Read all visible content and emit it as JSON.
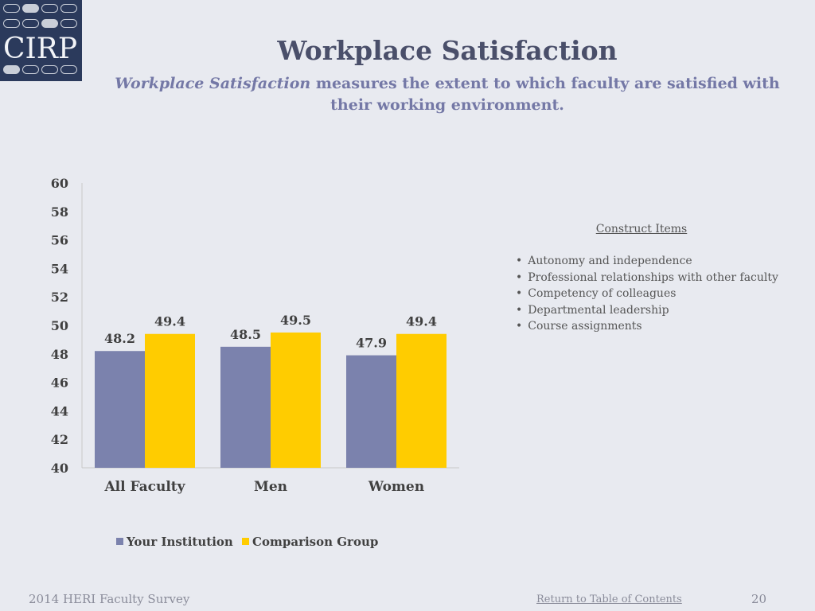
{
  "logo": {
    "text": "CIRP"
  },
  "header": {
    "title": "Workplace Satisfaction",
    "subtitle_italic": "Workplace Satisfaction",
    "subtitle_rest": " measures the extent to which faculty are satisfied with their working environment."
  },
  "chart_data": {
    "type": "bar",
    "categories": [
      "All Faculty",
      "Men",
      "Women"
    ],
    "series": [
      {
        "name": "Your Institution",
        "values": [
          48.2,
          48.5,
          47.9
        ],
        "color": "#7b82ad"
      },
      {
        "name": "Comparison Group",
        "values": [
          49.4,
          49.5,
          49.4
        ],
        "color": "#ffcc00"
      }
    ],
    "ylim": [
      40,
      60
    ],
    "yticks": [
      "60",
      "58",
      "56",
      "54",
      "52",
      "50",
      "48",
      "46",
      "44",
      "42",
      "40"
    ],
    "grid": false,
    "legend": "bottom"
  },
  "construct": {
    "heading": "Construct Items",
    "items": [
      "Autonomy and independence",
      "Professional relationships with other faculty",
      "Competency of  colleagues",
      "Departmental leadership",
      "Course assignments"
    ]
  },
  "footer": {
    "left": "2014 HERI Faculty Survey",
    "link": "Return to Table of Contents",
    "page": "20"
  }
}
